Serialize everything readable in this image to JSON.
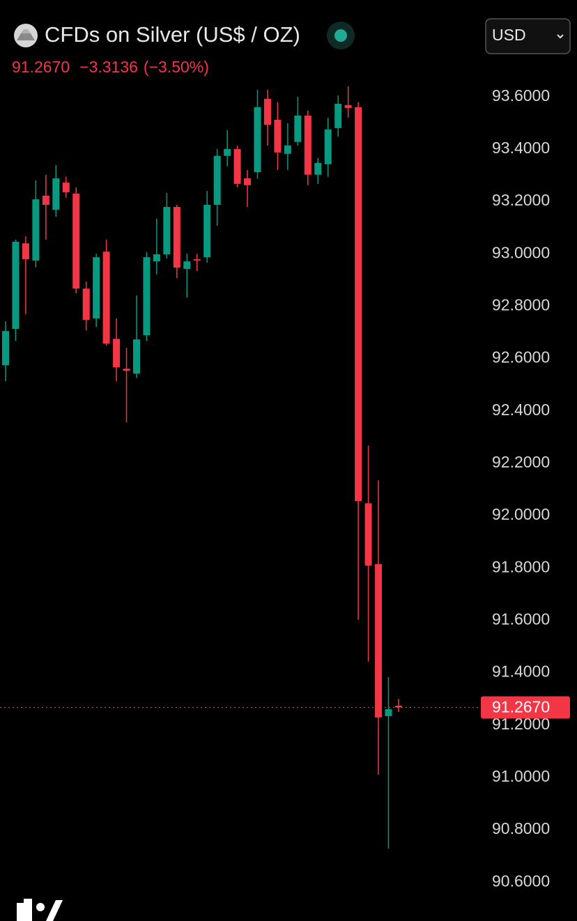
{
  "chart_data": {
    "type": "candlestick",
    "title": "CFDs on Silver (US$ / OZ)",
    "currency": "USD",
    "last_price": {
      "value": 91.267,
      "label": "91.2670"
    },
    "change": "−3.3136",
    "change_percent": "(−3.50%)",
    "up_color": "#089981",
    "down_color": "#f23645",
    "open": [
      92.574,
      92.713,
      93.04,
      92.974,
      93.222,
      93.168,
      93.272,
      93.23,
      92.867,
      92.753,
      93.008,
      92.675,
      92.561,
      92.542,
      92.689,
      92.971,
      92.998,
      93.179,
      92.942,
      92.979,
      92.987,
      93.187,
      93.374,
      93.4,
      93.288,
      93.312,
      93.592,
      93.512,
      93.382,
      93.427,
      93.528,
      93.302,
      93.342,
      93.48,
      93.568,
      93.56,
      92.047,
      91.815,
      91.234,
      91.274
    ],
    "high": [
      92.742,
      93.054,
      93.067,
      93.28,
      93.302,
      93.339,
      93.294,
      93.254,
      92.894,
      93.0,
      93.054,
      92.753,
      92.641,
      92.841,
      93.006,
      93.134,
      93.232,
      93.187,
      93.0,
      93.0,
      93.24,
      93.4,
      93.472,
      93.413,
      93.32,
      93.627,
      93.627,
      93.579,
      93.499,
      93.6,
      93.547,
      93.366,
      93.52,
      93.605,
      93.64,
      93.579,
      92.268,
      92.135,
      91.383,
      91.3
    ],
    "low": [
      92.513,
      92.667,
      92.769,
      92.947,
      93.054,
      93.142,
      93.214,
      92.849,
      92.707,
      92.721,
      92.649,
      92.513,
      92.356,
      92.526,
      92.667,
      92.921,
      92.982,
      92.907,
      92.833,
      92.934,
      92.966,
      93.107,
      93.334,
      93.254,
      93.179,
      93.286,
      93.413,
      93.32,
      93.32,
      93.413,
      93.262,
      93.267,
      93.294,
      93.448,
      93.52,
      91.602,
      91.442,
      91.01,
      90.728,
      91.25
    ],
    "close": [
      92.705,
      93.046,
      92.979,
      93.208,
      93.187,
      93.288,
      93.235,
      92.867,
      92.747,
      92.987,
      92.657,
      92.566,
      92.553,
      92.673,
      92.987,
      92.998,
      93.179,
      92.947,
      92.971,
      92.974,
      93.187,
      93.374,
      93.4,
      93.267,
      93.262,
      93.56,
      93.493,
      93.387,
      93.414,
      93.528,
      93.302,
      93.347,
      93.475,
      93.573,
      93.557,
      92.055,
      91.809,
      91.229,
      91.261,
      91.267
    ],
    "ylim": [
      90.51,
      93.65
    ],
    "yticks": [
      {
        "value": 93.6,
        "label": "93.6000"
      },
      {
        "value": 93.4,
        "label": "93.4000"
      },
      {
        "value": 93.2,
        "label": "93.2000"
      },
      {
        "value": 93.0,
        "label": "93.0000"
      },
      {
        "value": 92.8,
        "label": "92.8000"
      },
      {
        "value": 92.6,
        "label": "92.6000"
      },
      {
        "value": 92.4,
        "label": "92.4000"
      },
      {
        "value": 92.2,
        "label": "92.2000"
      },
      {
        "value": 92.0,
        "label": "92.0000"
      },
      {
        "value": 91.8,
        "label": "91.8000"
      },
      {
        "value": 91.6,
        "label": "91.6000"
      },
      {
        "value": 91.4,
        "label": "91.4000"
      },
      {
        "value": 91.2,
        "label": "91.2000"
      },
      {
        "value": 91.0,
        "label": "91.0000"
      },
      {
        "value": 90.8,
        "label": "90.8000"
      },
      {
        "value": 90.6,
        "label": "90.6000"
      }
    ]
  }
}
